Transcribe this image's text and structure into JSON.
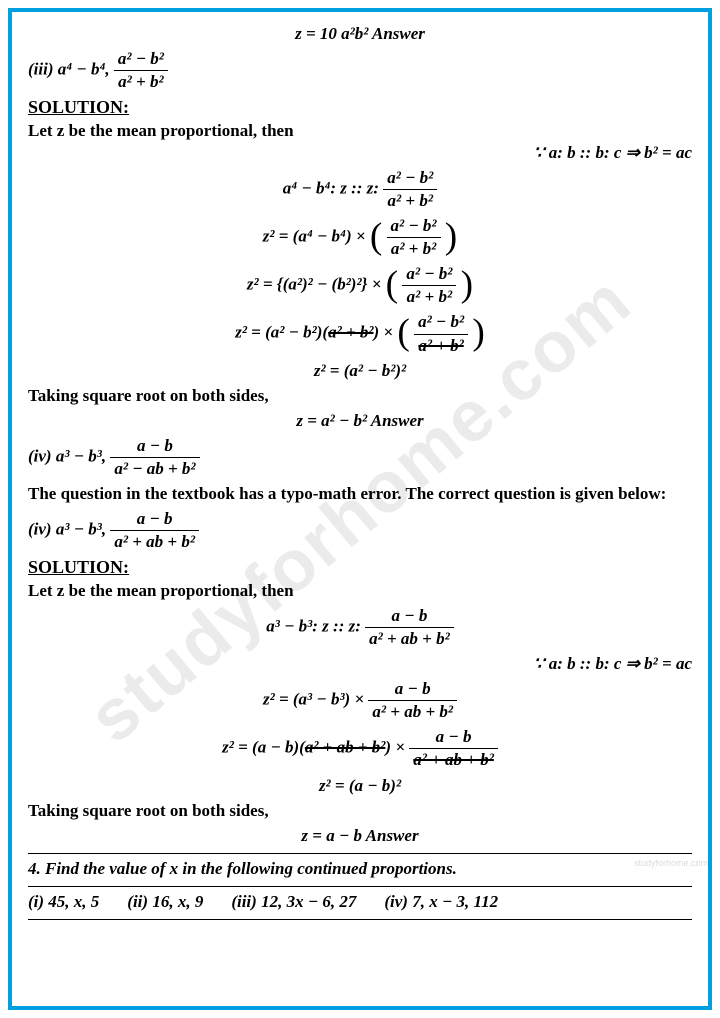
{
  "border_color": "#00a0e0",
  "watermark": "studyforhome.com",
  "small_watermark": "studyforhome.com",
  "line1": "z = 10 a²b²  Answer",
  "iii_label": "(iii) a⁴ − b⁴,",
  "iii_frac_num": "a² − b²",
  "iii_frac_den": "a² + b²",
  "solution_label": "SOLUTION:",
  "let_z": "Let z be the mean proportional, then",
  "because": "∵ a: b :: b: c ⇒ b² = ac",
  "eq1_left": "a⁴ − b⁴: z :: z:",
  "eq1_frac_num": "a² − b²",
  "eq1_frac_den": "a² + b²",
  "eq2_left": "z² = (a⁴ − b⁴) ×",
  "eq2_frac_num": "a² − b²",
  "eq2_frac_den": "a² + b²",
  "eq3_left": "z² = {(a²)² − (b²)²} ×",
  "eq3_frac_num": "a² − b²",
  "eq3_frac_den": "a² + b²",
  "eq4_left": "z² = (a² − b²)(",
  "eq4_strike": "a² + b²",
  "eq4_mid": ") ×",
  "eq4_frac_num": "a² − b²",
  "eq4_frac_den": "a² + b²",
  "eq5": "z² = (a² − b²)²",
  "taking_sqrt": "Taking square root on both sides,",
  "ans_iii": "z = a² − b²  Answer",
  "iv_label": "(iv) a³ − b³,",
  "iv_frac_num": "a − b",
  "iv_frac_den": "a² − ab + b²",
  "typo_note": "The question in the textbook has a typo-math error. The correct question is given below:",
  "iv2_frac_num": "a − b",
  "iv2_frac_den": "a² + ab + b²",
  "eq6_left": "a³ − b³: z :: z:",
  "eq6_frac_num": "a − b",
  "eq6_frac_den": "a² + ab + b²",
  "eq7_left": "z² = (a³ − b³) ×",
  "eq7_frac_num": "a − b",
  "eq7_frac_den": "a² + ab + b²",
  "eq8_left": "z² = (a − b)(",
  "eq8_strike": "a² + ab + b²",
  "eq8_mid": ") ×",
  "eq8_frac_num": "a − b",
  "eq8_frac_den": "a² + ab + b²",
  "eq9": "z² = (a − b)²",
  "ans_iv": "z = a − b  Answer",
  "q4": "4. Find the value of x in the following continued proportions.",
  "q4i": "(i) 45, x, 5",
  "q4ii": "(ii) 16, x, 9",
  "q4iii": "(iii) 12, 3x − 6, 27",
  "q4iv": "(iv) 7, x − 3, 112"
}
